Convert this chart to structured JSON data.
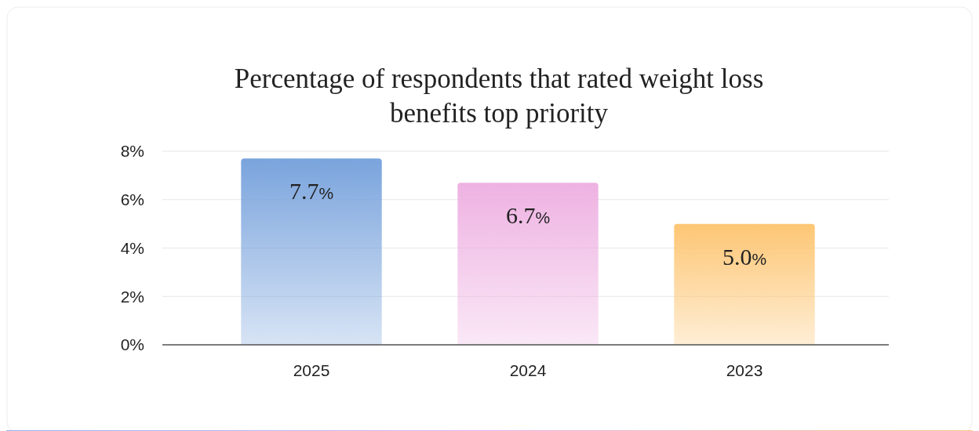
{
  "chart_data": {
    "type": "bar",
    "title": "Percentage of respondents that rated weight loss benefits top priority",
    "categories": [
      "2025",
      "2024",
      "2023"
    ],
    "values": [
      7.7,
      6.7,
      5.0
    ],
    "value_labels": [
      "7.7%",
      "6.7%",
      "5.0%"
    ],
    "colors": [
      "#7aa4dd",
      "#eeb2e2",
      "#fdc674"
    ],
    "ylim": [
      0,
      8
    ],
    "yticks": [
      {
        "value": 0,
        "label": "0%"
      },
      {
        "value": 2,
        "label": "2%"
      },
      {
        "value": 4,
        "label": "4%"
      },
      {
        "value": 6,
        "label": "6%"
      },
      {
        "value": 8,
        "label": "8%"
      }
    ],
    "grid": "y"
  }
}
